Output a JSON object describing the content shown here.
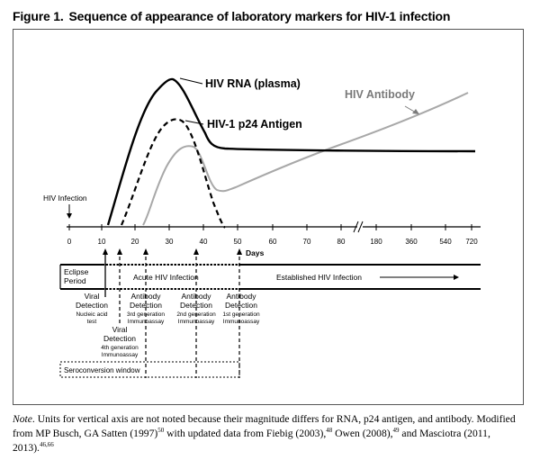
{
  "figure": {
    "label": "Figure 1.",
    "title": "Sequence of appearance of laboratory markers for HIV-1 infection"
  },
  "curves": {
    "rna": "HIV RNA (plasma)",
    "p24": "HIV-1 p24 Antigen",
    "antibody": "HIV Antibody"
  },
  "timeline": {
    "infection_label": "HIV Infection",
    "ticks": [
      "0",
      "10",
      "20",
      "30",
      "40",
      "50",
      "60",
      "70",
      "80",
      "180",
      "360",
      "540",
      "720"
    ],
    "unit": "Days"
  },
  "periods": {
    "eclipse_line1": "Eclipse",
    "eclipse_line2": "Period",
    "acute": "Acute HIV Infection",
    "established": "Established HIV Infection",
    "seroconversion": "Seroconversion window"
  },
  "detections": [
    {
      "title1": "Viral",
      "title2": "Detection",
      "sub1": "Nucleic acid",
      "sub2": "test"
    },
    {
      "title1": "Antibody",
      "title2": "Detection",
      "sub1": "3rd generation",
      "sub2": "Immunoassay"
    },
    {
      "title1": "Antibody",
      "title2": "Detection",
      "sub1": "2nd generation",
      "sub2": "Immunoassay"
    },
    {
      "title1": "Antibody",
      "title2": "Detection",
      "sub1": "1st generation",
      "sub2": "Immunoassay"
    },
    {
      "title1": "Viral",
      "title2": "Detection",
      "sub1": "4th generation",
      "sub2": "Immunoassay"
    }
  ],
  "note": {
    "lead": "Note",
    "p1": ". Units for vertical axis are not noted because their magnitude differs for RNA, p24 antigen, and antibody. Modified from MP Busch, GA Satten (1997)",
    "r1": "50",
    "p2": " with updated data from Fiebig (2003),",
    "r2": "48",
    "p3": " Owen (2008),",
    "r3": "49",
    "p4": " and Masciotra (2011, 2013).",
    "r4": "46,66"
  }
}
